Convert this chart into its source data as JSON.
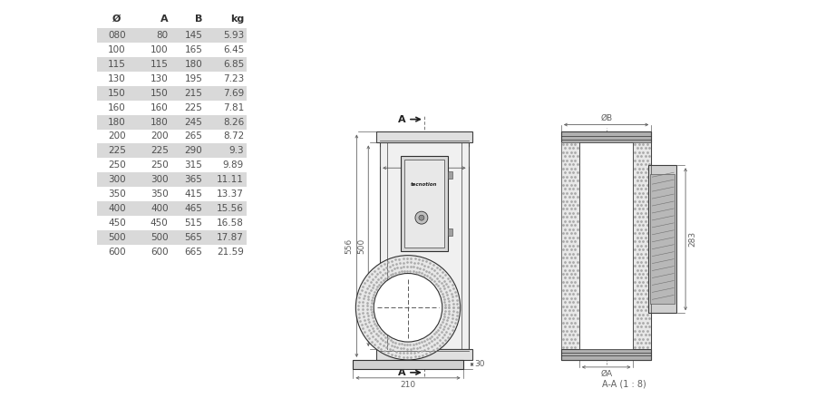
{
  "table_headers": [
    "Ø",
    "A",
    "B",
    "kg"
  ],
  "table_rows": [
    [
      "080",
      "80",
      "145",
      "5.93"
    ],
    [
      "100",
      "100",
      "165",
      "6.45"
    ],
    [
      "115",
      "115",
      "180",
      "6.85"
    ],
    [
      "130",
      "130",
      "195",
      "7.23"
    ],
    [
      "150",
      "150",
      "215",
      "7.69"
    ],
    [
      "160",
      "160",
      "225",
      "7.81"
    ],
    [
      "180",
      "180",
      "245",
      "8.26"
    ],
    [
      "200",
      "200",
      "265",
      "8.72"
    ],
    [
      "225",
      "225",
      "290",
      "9.3"
    ],
    [
      "250",
      "250",
      "315",
      "9.89"
    ],
    [
      "300",
      "300",
      "365",
      "11.11"
    ],
    [
      "350",
      "350",
      "415",
      "13.37"
    ],
    [
      "400",
      "400",
      "465",
      "15.56"
    ],
    [
      "450",
      "450",
      "515",
      "16.58"
    ],
    [
      "500",
      "500",
      "565",
      "17.87"
    ],
    [
      "600",
      "600",
      "665",
      "21.59"
    ]
  ],
  "shaded_rows": [
    0,
    2,
    4,
    6,
    8,
    10,
    12,
    14
  ],
  "row_bg_shaded": "#d9d9d9",
  "row_bg_white": "#ffffff",
  "text_color": "#505050",
  "header_color": "#303030",
  "bg_color": "#ffffff",
  "line_color": "#404040",
  "dim_color": "#606060"
}
